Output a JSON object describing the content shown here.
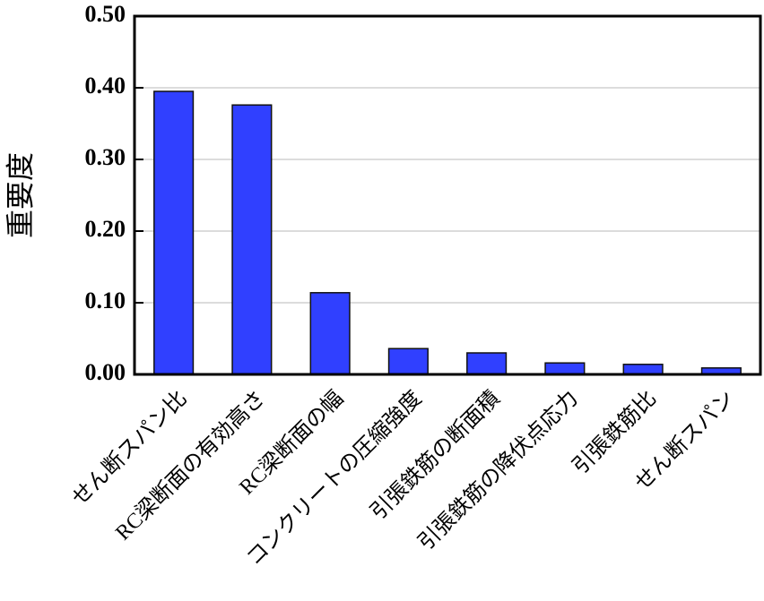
{
  "chart_data": {
    "type": "bar",
    "ylabel": "重要度",
    "categories": [
      "せん断スパン比",
      "RC梁断面の有効高さ",
      "RC梁断面の幅",
      "コンクリートの圧縮強度",
      "引張鉄筋の断面積",
      "引張鉄筋の降伏点応力",
      "引張鉄筋比",
      "せん断スパン"
    ],
    "values": [
      0.395,
      0.376,
      0.114,
      0.036,
      0.03,
      0.016,
      0.014,
      0.009
    ],
    "color": "#3040ff",
    "ylim": [
      0,
      0.5
    ],
    "yticks": [
      {
        "value": 0,
        "label": "0.00"
      },
      {
        "value": 0.1,
        "label": "0.10"
      },
      {
        "value": 0.2,
        "label": "0.20"
      },
      {
        "value": 0.3,
        "label": "0.30"
      },
      {
        "value": 0.4,
        "label": "0.40"
      },
      {
        "value": 0.5,
        "label": "0.50"
      }
    ],
    "grid": true
  }
}
